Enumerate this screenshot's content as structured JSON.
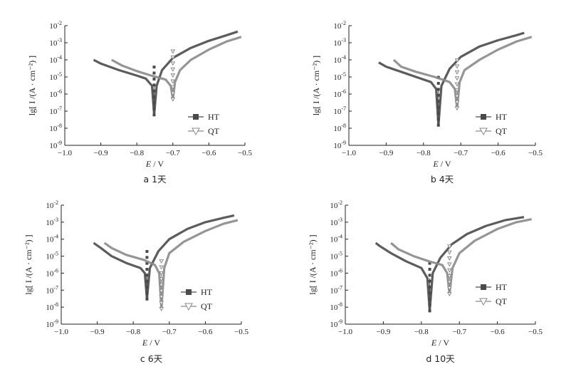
{
  "chart_data": [
    {
      "type": "line",
      "y_scale": "log",
      "xlim": [
        -1.0,
        -0.5
      ],
      "ylim_exp": [
        -9,
        -2
      ],
      "x_ticks": [
        "−1.0",
        "−0.9",
        "−0.8",
        "−0.7",
        "−0.6",
        "−0.5"
      ],
      "y_tick_exps": [
        "-9",
        "-8",
        "-7",
        "-6",
        "-5",
        "-4",
        "-3",
        "-2"
      ],
      "y_tick_base": "10",
      "xlabel_var": "E",
      "xlabel_unit": " / V",
      "ylabel": "lg[ I /(A · cm⁻²) ]",
      "caption": "a   1天",
      "legend_position": "lower-right",
      "series": [
        {
          "name": "HT",
          "marker": "square",
          "color": "#4a4a4a",
          "ecorr": -0.752,
          "ilim": 6e-08,
          "anodic": [
            [
              -0.752,
              6e-08
            ],
            [
              -0.745,
              3e-06
            ],
            [
              -0.73,
              2.5e-05
            ],
            [
              -0.7,
              0.00013
            ],
            [
              -0.65,
              0.0005
            ],
            [
              -0.6,
              0.0013
            ],
            [
              -0.55,
              0.0028
            ],
            [
              -0.52,
              0.0045
            ]
          ],
          "cathodic": [
            [
              -0.752,
              6e-08
            ],
            [
              -0.758,
              3e-06
            ],
            [
              -0.775,
              8e-06
            ],
            [
              -0.8,
              1.2e-05
            ],
            [
              -0.85,
              2.5e-05
            ],
            [
              -0.9,
              6e-05
            ],
            [
              -0.92,
              0.0001
            ]
          ]
        },
        {
          "name": "QT",
          "marker": "triangle-down",
          "color": "#8a8a8a",
          "ecorr": -0.7,
          "ilim": 5e-07,
          "anodic": [
            [
              -0.7,
              5e-07
            ],
            [
              -0.694,
              5e-06
            ],
            [
              -0.68,
              2.5e-05
            ],
            [
              -0.65,
              0.0001
            ],
            [
              -0.6,
              0.0004
            ],
            [
              -0.55,
              0.0012
            ],
            [
              -0.51,
              0.0022
            ]
          ],
          "cathodic": [
            [
              -0.7,
              5e-07
            ],
            [
              -0.706,
              3e-06
            ],
            [
              -0.72,
              7e-06
            ],
            [
              -0.76,
              1.2e-05
            ],
            [
              -0.8,
              2.2e-05
            ],
            [
              -0.84,
              4.5e-05
            ],
            [
              -0.87,
              0.0001
            ]
          ]
        }
      ]
    },
    {
      "type": "line",
      "y_scale": "log",
      "xlim": [
        -1.0,
        -0.5
      ],
      "ylim_exp": [
        -9,
        -2
      ],
      "x_ticks": [
        "−1.0",
        "−0.9",
        "−0.8",
        "−0.7",
        "−0.6",
        "−0.5"
      ],
      "y_tick_exps": [
        "-9",
        "-8",
        "-7",
        "-6",
        "-5",
        "-4",
        "-3",
        "-2"
      ],
      "y_tick_base": "10",
      "xlabel_var": "E",
      "xlabel_unit": " / V",
      "ylabel": "lg[ I /(A · cm⁻²) ]",
      "caption": "b   4天",
      "legend_position": "lower-right",
      "series": [
        {
          "name": "HT",
          "marker": "square",
          "color": "#4a4a4a",
          "ecorr": -0.76,
          "ilim": 1.5e-08,
          "anodic": [
            [
              -0.76,
              1.5e-08
            ],
            [
              -0.752,
              3e-06
            ],
            [
              -0.73,
              3e-05
            ],
            [
              -0.7,
              0.00015
            ],
            [
              -0.65,
              0.0006
            ],
            [
              -0.6,
              0.0014
            ],
            [
              -0.55,
              0.0028
            ],
            [
              -0.53,
              0.0038
            ]
          ],
          "cathodic": [
            [
              -0.76,
              1.5e-08
            ],
            [
              -0.766,
              2e-06
            ],
            [
              -0.78,
              5e-06
            ],
            [
              -0.82,
              1e-05
            ],
            [
              -0.86,
              2e-05
            ],
            [
              -0.9,
              4e-05
            ],
            [
              -0.92,
              7e-05
            ]
          ]
        },
        {
          "name": "QT",
          "marker": "triangle-down",
          "color": "#8a8a8a",
          "ecorr": -0.71,
          "ilim": 1.5e-07,
          "anodic": [
            [
              -0.71,
              1.5e-07
            ],
            [
              -0.703,
              5e-06
            ],
            [
              -0.69,
              2.5e-05
            ],
            [
              -0.65,
              0.0001
            ],
            [
              -0.6,
              0.0004
            ],
            [
              -0.55,
              0.0012
            ],
            [
              -0.51,
              0.0022
            ]
          ],
          "cathodic": [
            [
              -0.71,
              1.5e-07
            ],
            [
              -0.716,
              2e-06
            ],
            [
              -0.73,
              5e-06
            ],
            [
              -0.77,
              1e-05
            ],
            [
              -0.82,
              2e-05
            ],
            [
              -0.86,
              4e-05
            ],
            [
              -0.88,
              0.0001
            ]
          ]
        }
      ]
    },
    {
      "type": "line",
      "y_scale": "log",
      "xlim": [
        -1.0,
        -0.5
      ],
      "ylim_exp": [
        -9,
        -2
      ],
      "x_ticks": [
        "−1.0",
        "−0.9",
        "−0.8",
        "−0.7",
        "−0.6",
        "−0.5"
      ],
      "y_tick_exps": [
        "-9",
        "-8",
        "-7",
        "-6",
        "-5",
        "-4",
        "-3",
        "-2"
      ],
      "y_tick_base": "10",
      "xlabel_var": "E",
      "xlabel_unit": " / V",
      "ylabel": "lg[ I /(A · cm⁻²) ]",
      "caption": "c   6天",
      "legend_position": "lower-right",
      "series": [
        {
          "name": "HT",
          "marker": "square",
          "color": "#4a4a4a",
          "ecorr": -0.762,
          "ilim": 3e-08,
          "anodic": [
            [
              -0.762,
              3e-08
            ],
            [
              -0.754,
              2e-06
            ],
            [
              -0.73,
              2e-05
            ],
            [
              -0.7,
              0.0001
            ],
            [
              -0.65,
              0.0004
            ],
            [
              -0.6,
              0.001
            ],
            [
              -0.55,
              0.0018
            ],
            [
              -0.52,
              0.0025
            ]
          ],
          "cathodic": [
            [
              -0.762,
              3e-08
            ],
            [
              -0.768,
              1e-06
            ],
            [
              -0.78,
              2e-06
            ],
            [
              -0.82,
              4e-06
            ],
            [
              -0.86,
              1e-05
            ],
            [
              -0.89,
              3e-05
            ],
            [
              -0.91,
              6e-05
            ]
          ]
        },
        {
          "name": "QT",
          "marker": "triangle-down",
          "color": "#8a8a8a",
          "ecorr": -0.722,
          "ilim": 8e-09,
          "anodic": [
            [
              -0.722,
              8e-09
            ],
            [
              -0.714,
              2e-06
            ],
            [
              -0.7,
              1.5e-05
            ],
            [
              -0.66,
              7e-05
            ],
            [
              -0.6,
              0.0003
            ],
            [
              -0.55,
              0.0008
            ],
            [
              -0.51,
              0.0013
            ]
          ],
          "cathodic": [
            [
              -0.722,
              8e-09
            ],
            [
              -0.728,
              1e-06
            ],
            [
              -0.74,
              3e-06
            ],
            [
              -0.77,
              6e-06
            ],
            [
              -0.82,
              1.2e-05
            ],
            [
              -0.86,
              3e-05
            ],
            [
              -0.88,
              6e-05
            ]
          ]
        }
      ]
    },
    {
      "type": "line",
      "y_scale": "log",
      "xlim": [
        -1.0,
        -0.5
      ],
      "ylim_exp": [
        -9,
        -2
      ],
      "x_ticks": [
        "−1.0",
        "−0.9",
        "−0.8",
        "−0.7",
        "−0.6",
        "−0.5"
      ],
      "y_tick_exps": [
        "-9",
        "-8",
        "-7",
        "-6",
        "-5",
        "-4",
        "-3",
        "-2"
      ],
      "y_tick_base": "10",
      "xlabel_var": "E",
      "xlabel_unit": " / V",
      "ylabel": "lg[ I /(A · cm⁻²) ]",
      "caption": "d   10天",
      "legend_position": "lower-right",
      "series": [
        {
          "name": "HT",
          "marker": "square",
          "color": "#4a4a4a",
          "ecorr": -0.778,
          "ilim": 6e-09,
          "anodic": [
            [
              -0.778,
              6e-09
            ],
            [
              -0.77,
              1e-06
            ],
            [
              -0.75,
              8e-06
            ],
            [
              -0.72,
              5e-05
            ],
            [
              -0.68,
              0.0002
            ],
            [
              -0.63,
              0.0006
            ],
            [
              -0.58,
              0.0013
            ],
            [
              -0.53,
              0.002
            ]
          ],
          "cathodic": [
            [
              -0.778,
              6e-09
            ],
            [
              -0.784,
              5e-07
            ],
            [
              -0.8,
              2e-06
            ],
            [
              -0.84,
              5e-06
            ],
            [
              -0.88,
              1.5e-05
            ],
            [
              -0.91,
              4e-05
            ],
            [
              -0.92,
              6e-05
            ]
          ]
        },
        {
          "name": "QT",
          "marker": "triangle-down",
          "color": "#8a8a8a",
          "ecorr": -0.726,
          "ilim": 6e-08,
          "anodic": [
            [
              -0.726,
              6e-08
            ],
            [
              -0.718,
              2e-06
            ],
            [
              -0.7,
              1.5e-05
            ],
            [
              -0.66,
              8e-05
            ],
            [
              -0.6,
              0.0004
            ],
            [
              -0.55,
              0.001
            ],
            [
              -0.51,
              0.0015
            ]
          ],
          "cathodic": [
            [
              -0.726,
              6e-08
            ],
            [
              -0.732,
              1e-06
            ],
            [
              -0.745,
              3e-06
            ],
            [
              -0.78,
              5e-06
            ],
            [
              -0.82,
              1e-05
            ],
            [
              -0.86,
              2.5e-05
            ],
            [
              -0.88,
              6e-05
            ]
          ]
        }
      ]
    }
  ]
}
